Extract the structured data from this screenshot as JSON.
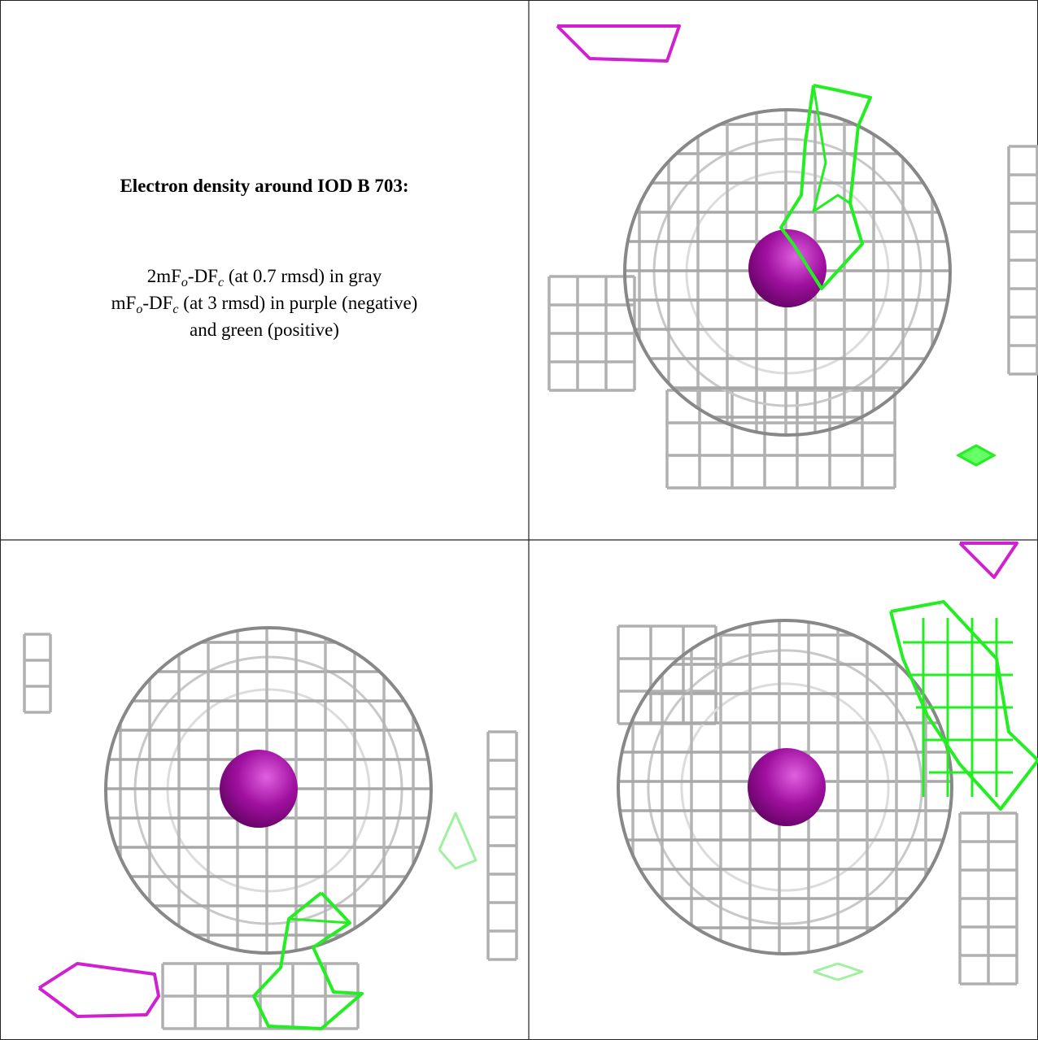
{
  "title": "Electron density around IOD B 703:",
  "legend_lines": [
    [
      "2mF",
      "o",
      "-DF",
      "c",
      " (at 0.7 rmsd) in gray"
    ],
    [
      "mF",
      "o",
      "-DF",
      "c",
      " (at 3 rmsd) in purple (negative)"
    ],
    [
      "and green (positive)"
    ]
  ]
}
